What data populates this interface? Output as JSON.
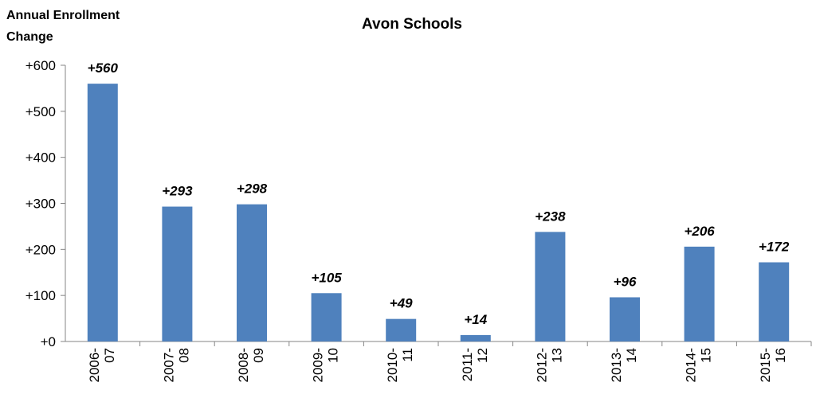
{
  "chart_data": {
    "type": "bar",
    "title": "Avon Schools",
    "y_label": "Annual Enrollment Change",
    "categories": [
      "2006-07",
      "2007-08",
      "2008-09",
      "2009-10",
      "2010-11",
      "2011-12",
      "2012-13",
      "2013-14",
      "2014-15",
      "2015-16"
    ],
    "values": [
      560,
      293,
      298,
      105,
      49,
      14,
      238,
      96,
      206,
      172
    ],
    "value_labels": [
      "+560",
      "+293",
      "+298",
      "+105",
      "+49",
      "+14",
      "+238",
      "+96",
      "+206",
      "+172"
    ],
    "color": "#4f81bd",
    "ylim": [
      0,
      600
    ],
    "yticks": [
      {
        "value": 0,
        "label": "+0"
      },
      {
        "value": 100,
        "label": "+100"
      },
      {
        "value": 200,
        "label": "+200"
      },
      {
        "value": 300,
        "label": "+300"
      },
      {
        "value": 400,
        "label": "+400"
      },
      {
        "value": 500,
        "label": "+500"
      },
      {
        "value": 600,
        "label": "+600"
      }
    ],
    "grid": false
  }
}
